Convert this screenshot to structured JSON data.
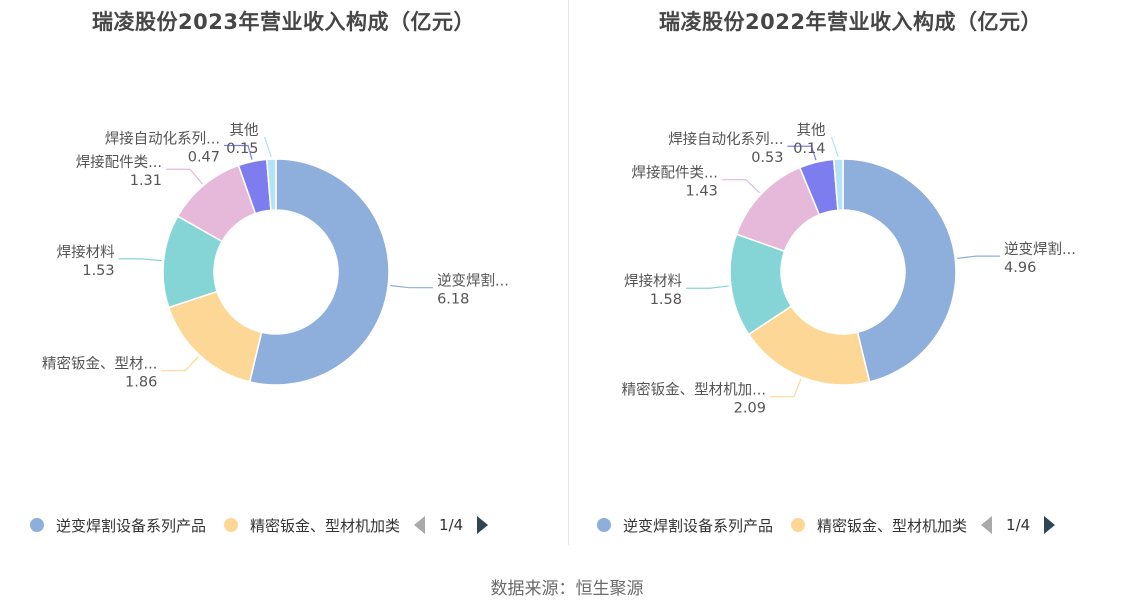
{
  "source": "数据来源：恒生聚源",
  "chart_data": [
    {
      "type": "pie",
      "title": "瑞凌股份2023年营业收入构成（亿元）",
      "slices": [
        {
          "name": "逆变焊割设备系列产品",
          "label": "逆变焊割...",
          "value": 6.18,
          "value_label": "6.18",
          "color": "#8eaedc"
        },
        {
          "name": "精密钣金、型材机加类",
          "label": "精密钣金、型材...",
          "value": 1.86,
          "value_label": "1.86",
          "color": "#fdd796"
        },
        {
          "name": "焊接材料",
          "label": "焊接材料",
          "value": 1.53,
          "value_label": "1.53",
          "color": "#86d5d6"
        },
        {
          "name": "焊接配件类",
          "label": "焊接配件类...",
          "value": 1.31,
          "value_label": "1.31",
          "color": "#e6b8da"
        },
        {
          "name": "焊接自动化系列",
          "label": "焊接自动化系列...",
          "value": 0.47,
          "value_label": "0.47",
          "color": "#7d7df0"
        },
        {
          "name": "其他",
          "label": "其他",
          "value": 0.15,
          "value_label": "0.15",
          "color": "#b5e2f5"
        }
      ],
      "legend": {
        "position": "bottom",
        "items": [
          "逆变焊割设备系列产品",
          "精密钣金、型材机加类"
        ],
        "colors": [
          "#8eaedc",
          "#fdd796"
        ],
        "page": "1/4"
      }
    },
    {
      "type": "pie",
      "title": "瑞凌股份2022年营业收入构成（亿元）",
      "slices": [
        {
          "name": "逆变焊割设备系列产品",
          "label": "逆变焊割...",
          "value": 4.96,
          "value_label": "4.96",
          "color": "#8eaedc"
        },
        {
          "name": "精密钣金、型材机加类",
          "label": "精密钣金、型材机加...",
          "value": 2.09,
          "value_label": "2.09",
          "color": "#fdd796"
        },
        {
          "name": "焊接材料",
          "label": "焊接材料",
          "value": 1.58,
          "value_label": "1.58",
          "color": "#86d5d6"
        },
        {
          "name": "焊接配件类",
          "label": "焊接配件类...",
          "value": 1.43,
          "value_label": "1.43",
          "color": "#e6b8da"
        },
        {
          "name": "焊接自动化系列",
          "label": "焊接自动化系列...",
          "value": 0.53,
          "value_label": "0.53",
          "color": "#7d7df0"
        },
        {
          "name": "其他",
          "label": "其他",
          "value": 0.14,
          "value_label": "0.14",
          "color": "#b5e2f5"
        }
      ],
      "legend": {
        "position": "bottom",
        "items": [
          "逆变焊割设备系列产品",
          "精密钣金、型材机加类"
        ],
        "colors": [
          "#8eaedc",
          "#fdd796"
        ],
        "page": "1/4"
      }
    }
  ]
}
